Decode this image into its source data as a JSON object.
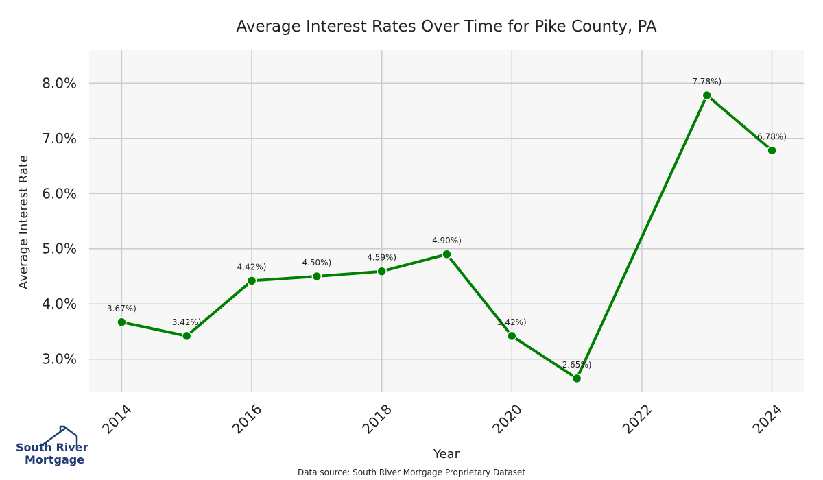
{
  "chart_data": {
    "type": "line",
    "title": "Average Interest Rates Over Time for Pike County, PA",
    "xlabel": "Year",
    "ylabel": "Average Interest Rate",
    "x": [
      2014,
      2015,
      2016,
      2017,
      2018,
      2019,
      2020,
      2021,
      2023,
      2024
    ],
    "series": [
      {
        "values": [
          3.67,
          3.42,
          4.42,
          4.5,
          4.59,
          4.9,
          3.42,
          2.65,
          7.78,
          6.78
        ]
      }
    ],
    "data_labels": [
      "3.67%)",
      "3.42%)",
      "4.42%)",
      "4.50%)",
      "4.59%)",
      "4.90%)",
      "3.42%)",
      "2.65%)",
      "7.78%)",
      "6.78%)"
    ],
    "xlim": [
      2013.5,
      2024.5
    ],
    "ylim": [
      2.4,
      8.6
    ],
    "x_ticks": [
      2014,
      2016,
      2018,
      2020,
      2022,
      2024
    ],
    "x_tick_labels": [
      "2014",
      "2016",
      "2018",
      "2020",
      "2022",
      "2024"
    ],
    "y_ticks": [
      3,
      4,
      5,
      6,
      7,
      8
    ],
    "y_tick_labels": [
      "3.0%",
      "4.0%",
      "5.0%",
      "6.0%",
      "7.0%",
      "8.0%"
    ],
    "grid": true,
    "line_color": "#008000",
    "plot_background": "#f7f7f7",
    "grid_color": "#cccccc"
  },
  "source_note": "Data source: South River Mortgage Proprietary Dataset",
  "logo": {
    "line1": "South River",
    "line2": "Mortgage",
    "icon": "house-roof-icon",
    "color": "#1f3b73"
  }
}
